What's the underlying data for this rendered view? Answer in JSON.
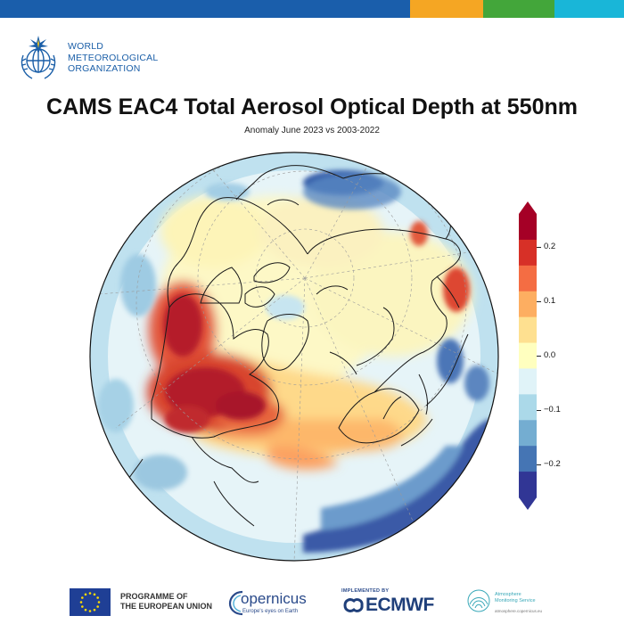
{
  "header": {
    "org_lines": [
      "WORLD",
      "METEOROLOGICAL",
      "ORGANIZATION"
    ],
    "strip_colors": [
      "#1a5eab",
      "#f5a623",
      "#43a63a",
      "#19b6d8"
    ],
    "emblem_icon": "wmo-emblem-icon"
  },
  "title": "CAMS EAC4 Total Aerosol Optical Depth at 550nm",
  "subtitle": "Anomaly June 2023 vs 2003-2022",
  "map": {
    "projection": "north-polar-orthographic",
    "variable": "Total Aerosol Optical Depth anomaly at 550nm",
    "features": [
      "coastlines",
      "graticule-dashed"
    ],
    "high_anomaly_regions": [
      "Canada (wildfire smoke)",
      "North Atlantic plume",
      "Northwest Europe",
      "Sea of Okhotsk / Far East Russia"
    ],
    "low_anomaly_regions": [
      "North Pacific",
      "North Atlantic south of Greenland",
      "Eastern Asia margin"
    ]
  },
  "colorbar": {
    "min": -0.26,
    "max": 0.26,
    "ticks": [
      "0.2",
      "0.1",
      "0.0",
      "−0.1",
      "−0.2"
    ],
    "tick_values": [
      0.2,
      0.1,
      0.0,
      -0.1,
      -0.2
    ],
    "colors": [
      "#313695",
      "#4575b4",
      "#74add1",
      "#abd9e9",
      "#e0f3f8",
      "#ffffbf",
      "#fee090",
      "#fdae61",
      "#f46d43",
      "#d73027",
      "#a50026"
    ],
    "extend": "both"
  },
  "footer": {
    "eu_lines": [
      "PROGRAMME OF",
      "THE EUROPEAN UNION"
    ],
    "copernicus": "opernicus",
    "copernicus_tagline": "Europe's eyes on Earth",
    "ecmwf_implemented": "IMPLEMENTED BY",
    "ecmwf": "ECMWF",
    "cams_lines": [
      "Atmosphere",
      "Monitoring Service"
    ],
    "cams_url": "atmosphere.copernicus.eu"
  }
}
